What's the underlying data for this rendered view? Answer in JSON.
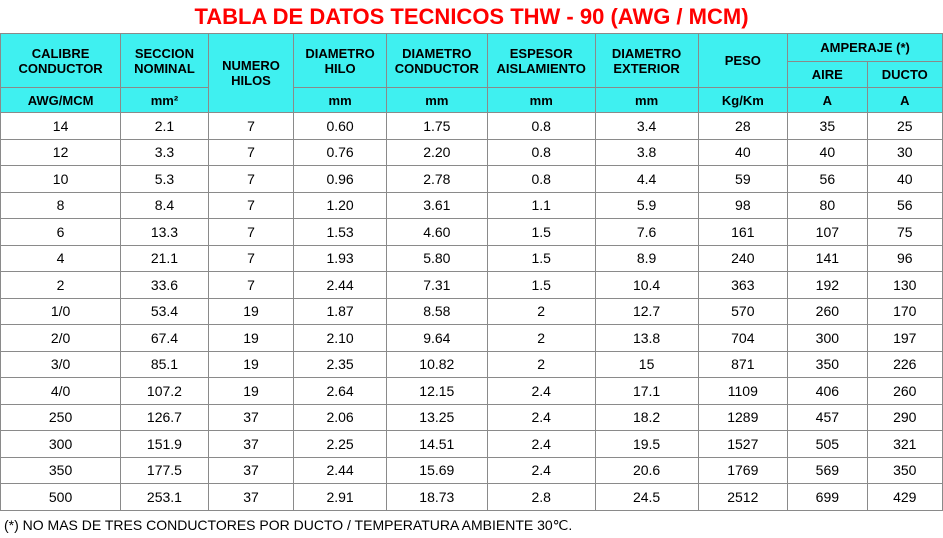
{
  "title": "TABLA DE DATOS TECNICOS THW - 90 (AWG / MCM)",
  "headers": {
    "calibre": [
      "CALIBRE",
      "CONDUCTOR"
    ],
    "seccion": [
      "SECCION",
      "NOMINAL"
    ],
    "numero": [
      "NUMERO",
      "HILOS"
    ],
    "diam_hilo": [
      "DIAMETRO",
      "HILO"
    ],
    "diam_conductor": [
      "DIAMETRO",
      "CONDUCTOR"
    ],
    "espesor": [
      "ESPESOR",
      "AISLAMIENTO"
    ],
    "diam_exterior": [
      "DIAMETRO",
      "EXTERIOR"
    ],
    "peso": "PESO",
    "amperaje": "AMPERAJE (*)",
    "aire": "AIRE",
    "ducto": "DUCTO"
  },
  "units": {
    "calibre": "AWG/MCM",
    "seccion": "mm²",
    "diam_hilo": "mm",
    "diam_conductor": "mm",
    "espesor": "mm",
    "diam_exterior": "mm",
    "peso": "Kg/Km",
    "aire": "A",
    "ducto": "A"
  },
  "rows": [
    [
      "14",
      "2.1",
      "7",
      "0.60",
      "1.75",
      "0.8",
      "3.4",
      "28",
      "35",
      "25"
    ],
    [
      "12",
      "3.3",
      "7",
      "0.76",
      "2.20",
      "0.8",
      "3.8",
      "40",
      "40",
      "30"
    ],
    [
      "10",
      "5.3",
      "7",
      "0.96",
      "2.78",
      "0.8",
      "4.4",
      "59",
      "56",
      "40"
    ],
    [
      "8",
      "8.4",
      "7",
      "1.20",
      "3.61",
      "1.1",
      "5.9",
      "98",
      "80",
      "56"
    ],
    [
      "6",
      "13.3",
      "7",
      "1.53",
      "4.60",
      "1.5",
      "7.6",
      "161",
      "107",
      "75"
    ],
    [
      "4",
      "21.1",
      "7",
      "1.93",
      "5.80",
      "1.5",
      "8.9",
      "240",
      "141",
      "96"
    ],
    [
      "2",
      "33.6",
      "7",
      "2.44",
      "7.31",
      "1.5",
      "10.4",
      "363",
      "192",
      "130"
    ],
    [
      "1/0",
      "53.4",
      "19",
      "1.87",
      "8.58",
      "2",
      "12.7",
      "570",
      "260",
      "170"
    ],
    [
      "2/0",
      "67.4",
      "19",
      "2.10",
      "9.64",
      "2",
      "13.8",
      "704",
      "300",
      "197"
    ],
    [
      "3/0",
      "85.1",
      "19",
      "2.35",
      "10.82",
      "2",
      "15",
      "871",
      "350",
      "226"
    ],
    [
      "4/0",
      "107.2",
      "19",
      "2.64",
      "12.15",
      "2.4",
      "17.1",
      "1109",
      "406",
      "260"
    ],
    [
      "250",
      "126.7",
      "37",
      "2.06",
      "13.25",
      "2.4",
      "18.2",
      "1289",
      "457",
      "290"
    ],
    [
      "300",
      "151.9",
      "37",
      "2.25",
      "14.51",
      "2.4",
      "19.5",
      "1527",
      "505",
      "321"
    ],
    [
      "350",
      "177.5",
      "37",
      "2.44",
      "15.69",
      "2.4",
      "20.6",
      "1769",
      "569",
      "350"
    ],
    [
      "500",
      "253.1",
      "37",
      "2.91",
      "18.73",
      "2.8",
      "24.5",
      "2512",
      "699",
      "429"
    ]
  ],
  "footnote": "(*) NO MAS DE TRES CONDUCTORES POR DUCTO / TEMPERATURA AMBIENTE 30℃.",
  "colors": {
    "title": "#ff0000",
    "header_bg": "#3ff0f0",
    "border": "#8a8a8a"
  }
}
